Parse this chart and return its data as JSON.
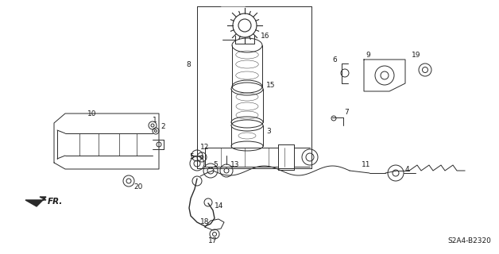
{
  "bg_color": "#ffffff",
  "line_color": "#2a2a2a",
  "text_color": "#1a1a1a",
  "part_number_text": "S2A4-B2320",
  "fr_label": "FR.",
  "figsize": [
    6.28,
    3.2
  ],
  "dpi": 100
}
